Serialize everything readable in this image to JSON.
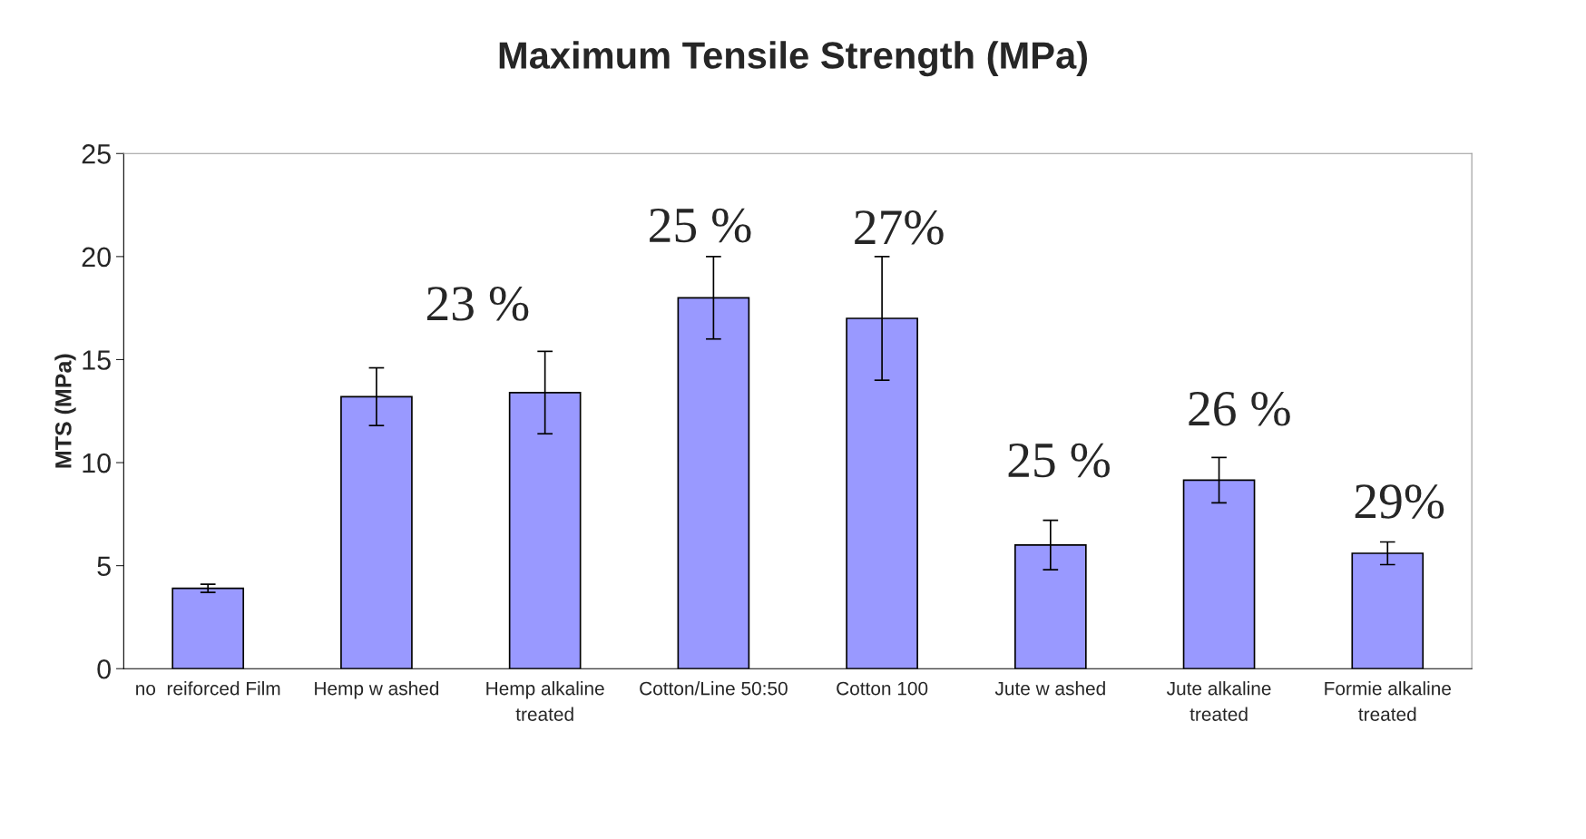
{
  "chart_data": {
    "type": "bar",
    "title": "Maximum Tensile Strength (MPa)",
    "ylabel": "MTS (MPa)",
    "categories": [
      "no  reiforced Film",
      "Hemp w ashed",
      "Hemp alkaline\ntreated",
      "Cotton/Line 50:50",
      "Cotton 100",
      "Jute w ashed",
      "Jute alkaline\ntreated",
      "Formie alkaline\ntreated"
    ],
    "values": [
      3.9,
      13.2,
      13.4,
      18.0,
      17.0,
      6.0,
      9.15,
      5.6
    ],
    "errors": [
      0.2,
      1.4,
      2.0,
      2.0,
      3.0,
      1.2,
      1.1,
      0.55
    ],
    "color": "#9999ff",
    "ylim": [
      0,
      25
    ],
    "yticks": [
      0,
      5,
      10,
      15,
      20,
      25
    ],
    "grid": false,
    "legend": false,
    "annotations": [
      "23 %",
      "25 %",
      "27%",
      "25 %",
      "26 %",
      "29%"
    ]
  }
}
